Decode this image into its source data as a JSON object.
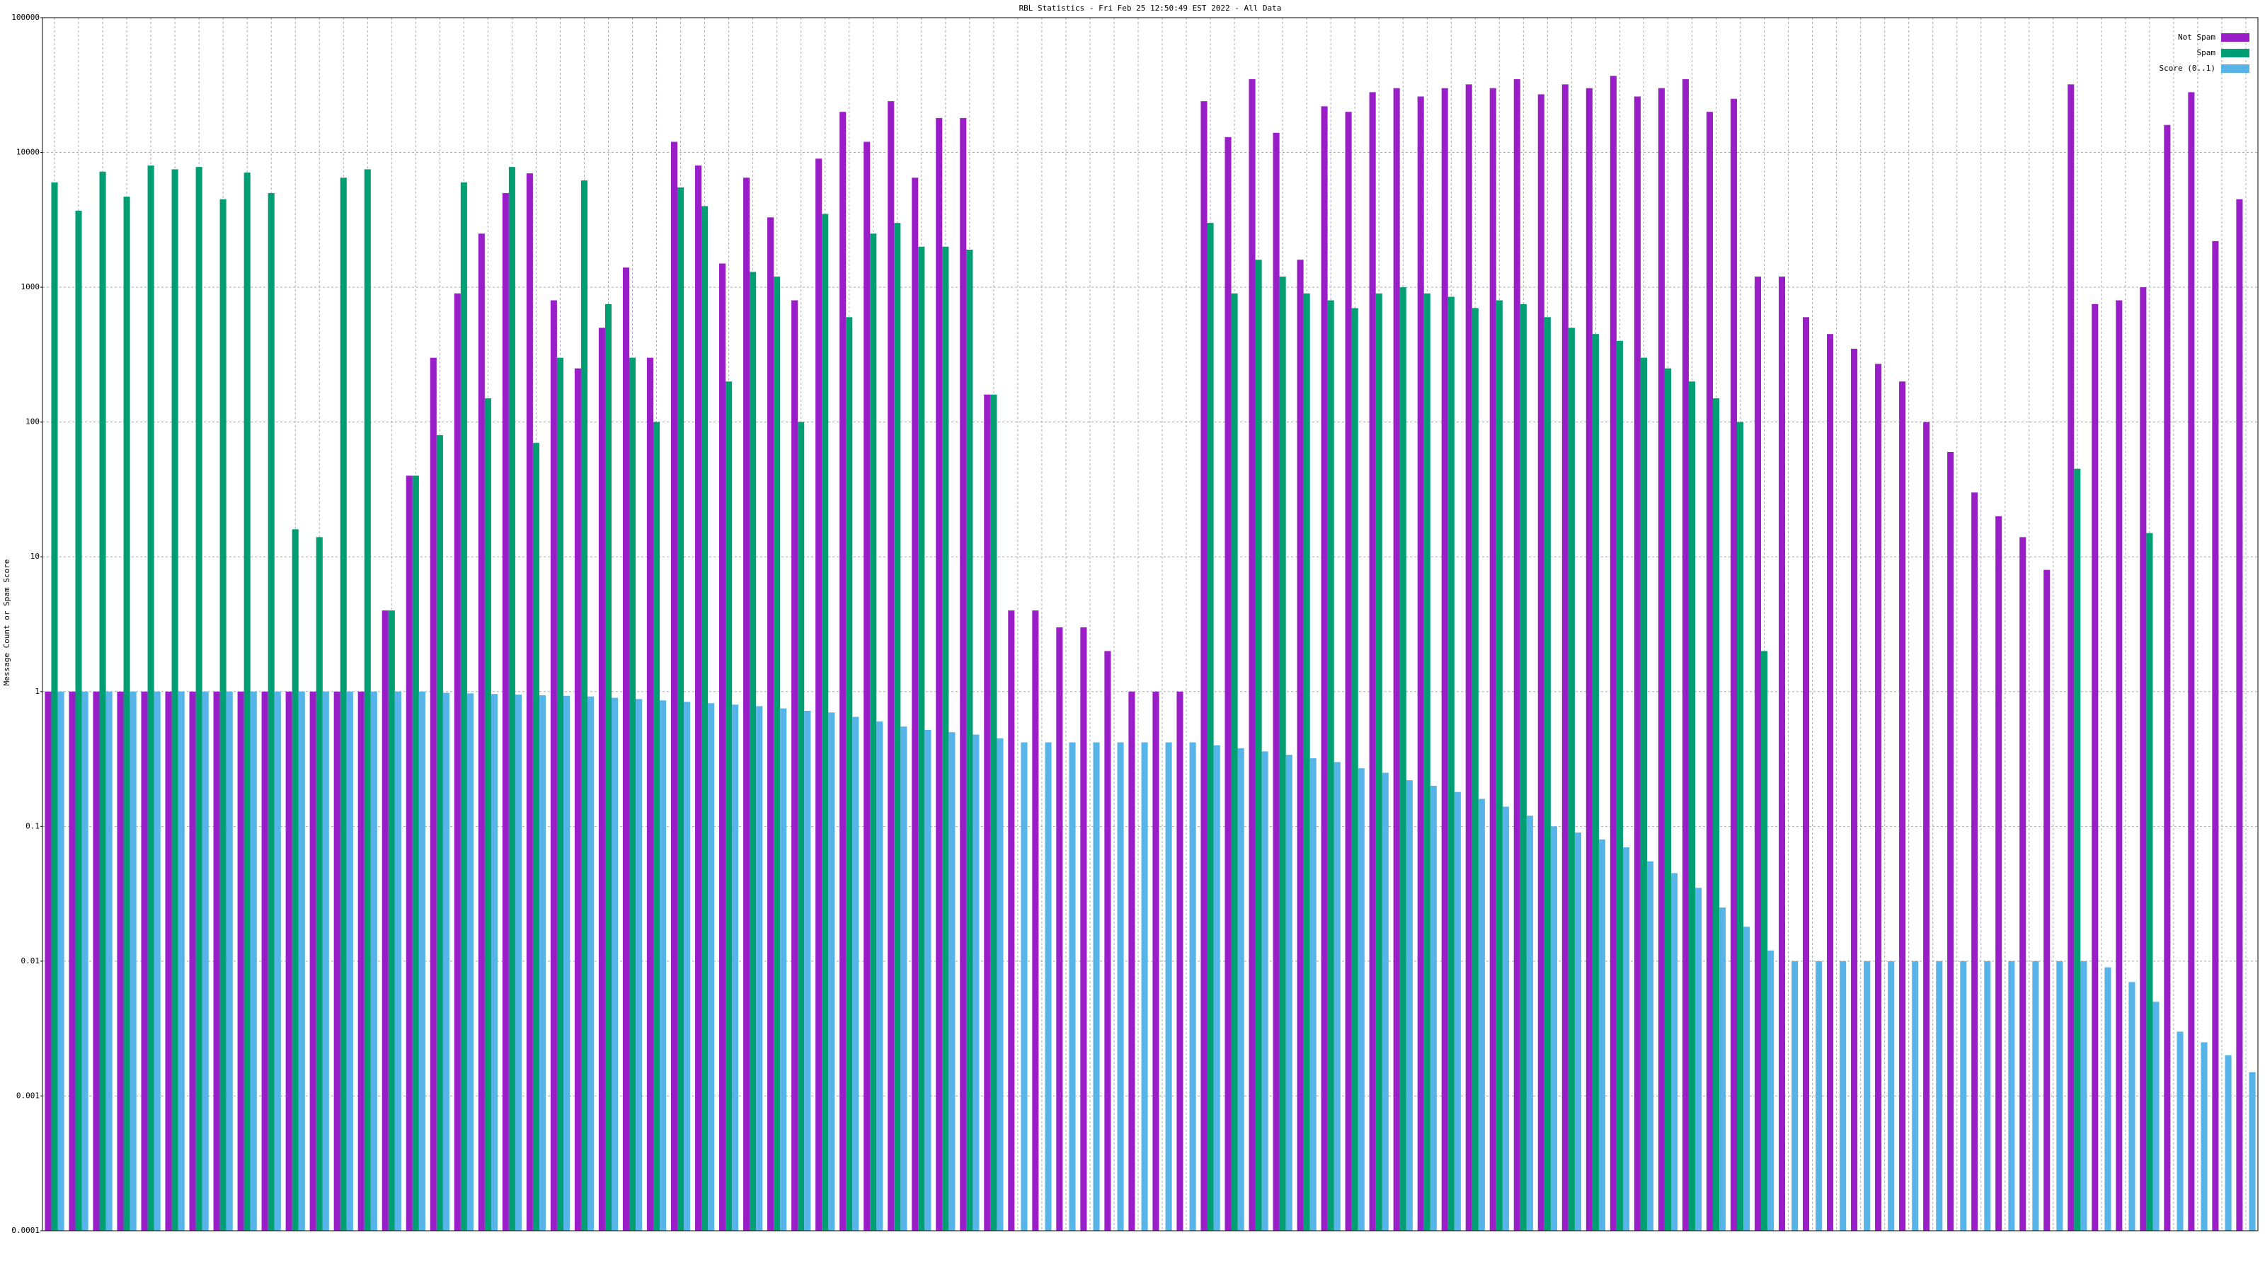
{
  "chart_data": {
    "type": "bar",
    "title": "RBL Statistics - Fri Feb 25 12:50:49 EST 2022 - All Data",
    "y_label": "Message Count or Spam Score",
    "log_scale": true,
    "grid": true,
    "legend_position": "top-right",
    "ylim": [
      0.0001,
      100000
    ],
    "yticks": [
      0.0001,
      0.001,
      0.01,
      0.1,
      1,
      10,
      100,
      1000,
      10000,
      100000
    ],
    "categories": [
      null,
      null,
      null,
      null,
      null,
      null,
      null,
      null,
      null,
      null,
      null,
      null,
      null,
      null,
      null,
      null,
      null,
      null,
      null,
      null,
      null,
      null,
      null,
      null,
      null,
      null,
      null,
      null,
      null,
      null,
      null,
      null,
      null,
      null,
      null,
      null,
      null,
      null,
      null,
      null,
      null,
      null,
      null,
      null,
      null,
      null,
      null,
      null,
      null,
      null,
      null,
      null,
      null,
      null,
      null,
      null,
      null,
      null,
      null,
      null,
      null,
      null,
      null,
      null,
      null,
      null,
      null,
      null,
      null,
      null,
      null,
      null,
      null,
      null,
      null,
      null,
      null,
      null,
      null,
      null,
      null,
      null,
      null,
      null,
      null,
      null,
      null,
      null,
      null,
      null,
      null,
      null
    ],
    "series": [
      {
        "name": "Not Spam",
        "color": "#9a1ec8",
        "values": [
          1,
          1,
          1,
          1,
          1,
          1,
          1,
          1,
          1,
          1,
          1,
          1,
          1,
          1,
          4,
          40,
          300,
          900,
          2500,
          5000,
          7000,
          800,
          250,
          500,
          1400,
          300,
          12000,
          8000,
          1500,
          6500,
          3300,
          800,
          9000,
          20000,
          12000,
          24000,
          6500,
          18000,
          18000,
          160,
          4,
          4,
          3,
          3,
          2,
          1,
          1,
          1,
          24000,
          13000,
          35000,
          14000,
          1600,
          22000,
          20000,
          28000,
          30000,
          26000,
          30000,
          32000,
          30000,
          35000,
          27000,
          32000,
          30000,
          37000,
          26000,
          30000,
          35000,
          20000,
          25000,
          1200,
          1200,
          600,
          450,
          350,
          270,
          200,
          100,
          60,
          30,
          20,
          14,
          8,
          32000,
          750,
          800,
          1000,
          16000,
          28000,
          2200,
          4500
        ]
      },
      {
        "name": "Spam",
        "color": "#009e73",
        "values": [
          6000,
          3700,
          7200,
          4700,
          8000,
          7500,
          7800,
          4500,
          7100,
          5000,
          16,
          14,
          6500,
          7500,
          4,
          40,
          80,
          6000,
          150,
          7800,
          70,
          300,
          6200,
          750,
          300,
          100,
          5500,
          4000,
          200,
          1300,
          1200,
          100,
          3500,
          600,
          2500,
          3000,
          2000,
          2000,
          1900,
          160,
          null,
          null,
          null,
          null,
          null,
          null,
          null,
          null,
          3000,
          900,
          1600,
          1200,
          900,
          800,
          700,
          900,
          1000,
          900,
          850,
          700,
          800,
          750,
          600,
          500,
          450,
          400,
          300,
          250,
          200,
          150,
          100,
          2,
          null,
          null,
          null,
          null,
          null,
          null,
          null,
          null,
          null,
          null,
          null,
          null,
          45,
          null,
          null,
          15,
          null,
          null,
          null,
          null
        ]
      },
      {
        "name": "Score (0..1)",
        "color": "#56b4e9",
        "values": [
          1,
          1,
          1,
          1,
          1,
          1,
          1,
          1,
          1,
          1,
          1,
          1,
          1,
          1,
          1,
          1,
          0.98,
          0.97,
          0.96,
          0.95,
          0.94,
          0.93,
          0.92,
          0.9,
          0.88,
          0.86,
          0.84,
          0.82,
          0.8,
          0.78,
          0.75,
          0.72,
          0.7,
          0.65,
          0.6,
          0.55,
          0.52,
          0.5,
          0.48,
          0.45,
          0.42,
          0.42,
          0.42,
          0.42,
          0.42,
          0.42,
          0.42,
          0.42,
          0.4,
          0.38,
          0.36,
          0.34,
          0.32,
          0.3,
          0.27,
          0.25,
          0.22,
          0.2,
          0.18,
          0.16,
          0.14,
          0.12,
          0.1,
          0.09,
          0.08,
          0.07,
          0.055,
          0.045,
          0.035,
          0.025,
          0.018,
          0.012,
          0.01,
          0.01,
          0.01,
          0.01,
          0.01,
          0.01,
          0.01,
          0.01,
          0.01,
          0.01,
          0.01,
          0.01,
          0.01,
          0.009,
          0.007,
          0.005,
          0.003,
          0.0025,
          0.002,
          0.0015
        ]
      }
    ]
  }
}
